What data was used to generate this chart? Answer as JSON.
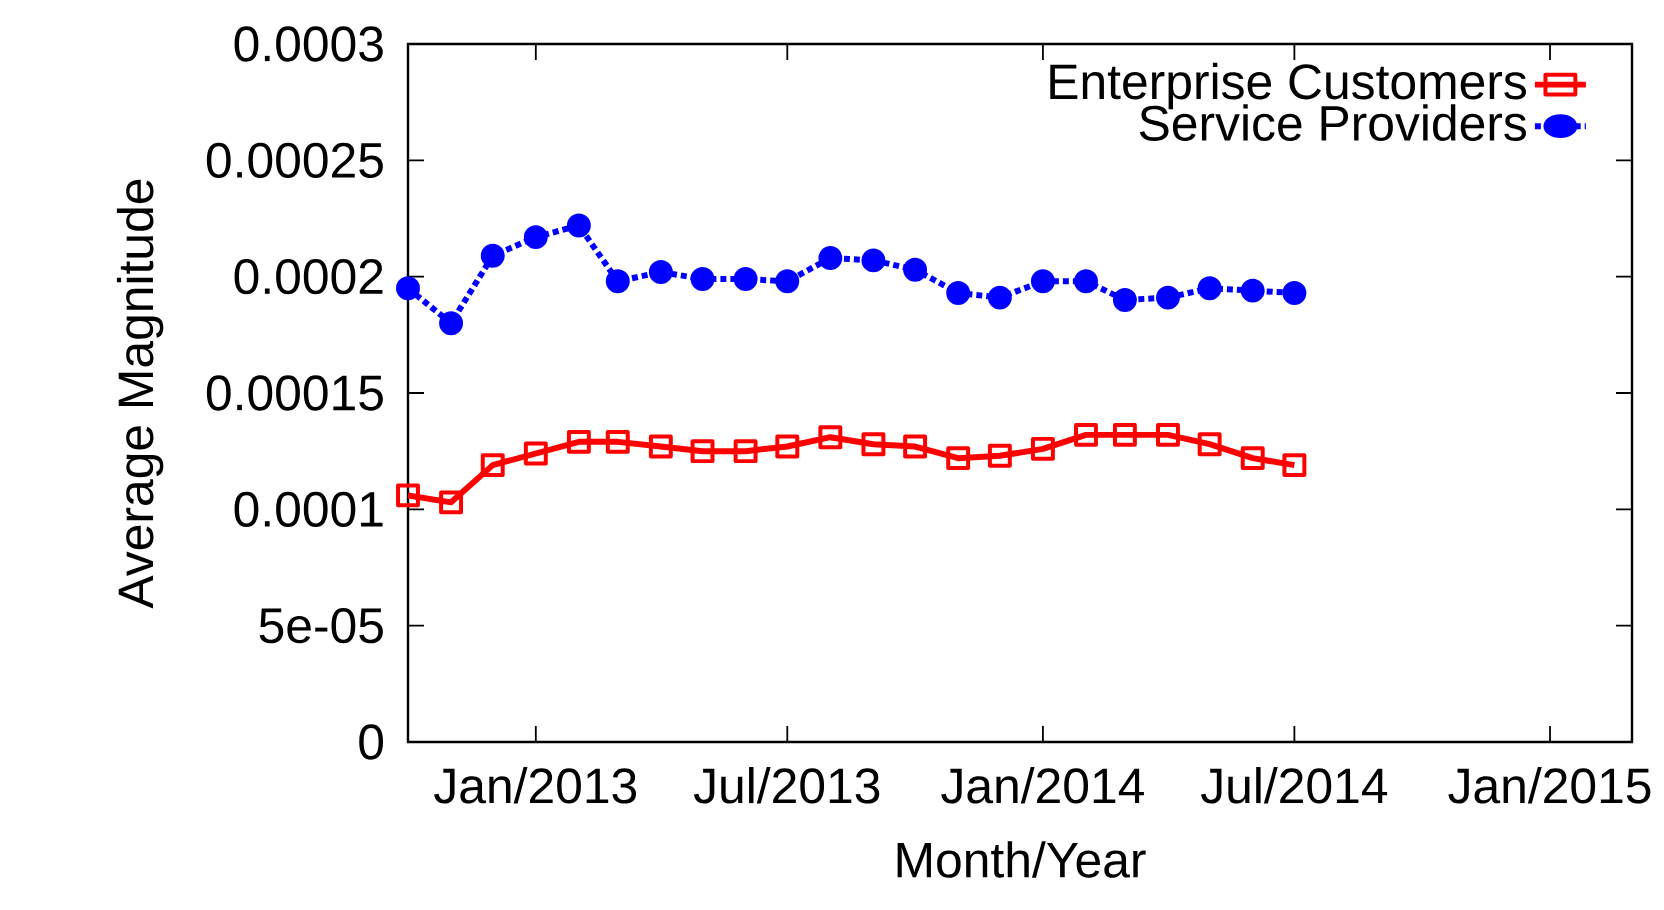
{
  "chart_data": {
    "type": "line",
    "xlabel": "Month/Year",
    "ylabel": "Average Magnitude",
    "x": [
      "2012-10",
      "2012-11",
      "2012-12",
      "2013-01",
      "2013-02",
      "2013-03",
      "2013-04",
      "2013-05",
      "2013-06",
      "2013-07",
      "2013-08",
      "2013-09",
      "2013-10",
      "2013-11",
      "2013-12",
      "2014-01",
      "2014-02",
      "2014-03",
      "2014-04",
      "2014-05",
      "2014-06",
      "2014-07"
    ],
    "series": [
      {
        "name": "Enterprise Customers",
        "color": "#ff0000",
        "marker": "square",
        "line_style": "solid",
        "values": [
          0.000106,
          0.000103,
          0.000119,
          0.000124,
          0.000129,
          0.000129,
          0.000127,
          0.000125,
          0.000125,
          0.000127,
          0.000131,
          0.000128,
          0.000127,
          0.000122,
          0.000123,
          0.000126,
          0.000132,
          0.000132,
          0.000132,
          0.000128,
          0.000122,
          0.000119
        ]
      },
      {
        "name": "Service Providers",
        "color": "#0000ff",
        "marker": "circle",
        "line_style": "dotted",
        "values": [
          0.000195,
          0.00018,
          0.000209,
          0.000217,
          0.000222,
          0.000198,
          0.000202,
          0.000199,
          0.000199,
          0.000198,
          0.000208,
          0.000207,
          0.000203,
          0.000193,
          0.000191,
          0.000198,
          0.000198,
          0.00019,
          0.000191,
          0.000195,
          0.000194,
          0.000193
        ]
      }
    ],
    "xlim": [
      "2012-10",
      "2015-03"
    ],
    "xticks": [
      {
        "value": "2013-01",
        "label": "Jan/2013"
      },
      {
        "value": "2013-07",
        "label": "Jul/2013"
      },
      {
        "value": "2014-01",
        "label": "Jan/2014"
      },
      {
        "value": "2014-07",
        "label": "Jul/2014"
      },
      {
        "value": "2015-01",
        "label": "Jan/2015"
      }
    ],
    "ylim": [
      0,
      0.0003
    ],
    "yticks": [
      0,
      {
        "value": 5e-05,
        "label": "5e-05"
      },
      0.0001,
      0.00015,
      0.0002,
      0.00025,
      0.0003
    ],
    "grid": false,
    "legend": "top right"
  }
}
